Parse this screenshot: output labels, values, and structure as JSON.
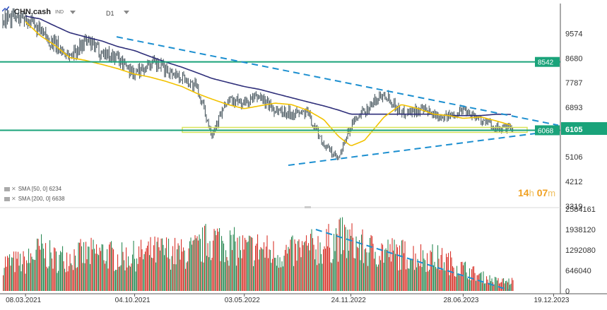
{
  "header": {
    "symbol": "CHN.cash",
    "badge": "IND",
    "timeframe": "D1"
  },
  "indicators": [
    {
      "label": "SMA",
      "params": "[50, 0]",
      "value": "6234",
      "color": "#f2c200"
    },
    {
      "label": "SMA",
      "params": "[200, 0]",
      "value": "6638",
      "color": "#2f2f7a"
    }
  ],
  "timer": {
    "hours": "14",
    "h_unit": "h",
    "minutes": "07",
    "m_unit": "m"
  },
  "price_axis_ticks": [
    "9574",
    "8680",
    "7787",
    "6893",
    "5106",
    "4212",
    "3319"
  ],
  "volume_axis_ticks": [
    "2584161",
    "1938120",
    "1292080",
    "646040",
    "0"
  ],
  "date_ticks": [
    "08.03.2021",
    "04.10.2021",
    "03.05.2022",
    "24.11.2022",
    "28.06.2023",
    "19.12.2023"
  ],
  "price_labels": {
    "resistance": "8542",
    "support": "6068",
    "current": "6105"
  },
  "colors": {
    "up": "#2e8b57",
    "down": "#d9342b",
    "level": "#1aa37a",
    "trend": "#1c8fd0",
    "sma50": "#f2c200",
    "sma200": "#2f2f7a",
    "zone": "#d8e35a"
  },
  "chart_data": {
    "type": "line",
    "title": "CHN.cash",
    "timeframe": "D1",
    "x": [
      "2021-03-08",
      "2021-04-05",
      "2021-05-03",
      "2021-06-01",
      "2021-07-01",
      "2021-08-02",
      "2021-09-01",
      "2021-10-04",
      "2021-11-01",
      "2021-12-01",
      "2022-01-03",
      "2022-02-01",
      "2022-03-01",
      "2022-04-01",
      "2022-05-03",
      "2022-06-01",
      "2022-07-01",
      "2022-08-01",
      "2022-09-01",
      "2022-10-03",
      "2022-10-31",
      "2022-11-24",
      "2022-12-20",
      "2023-01-27",
      "2023-03-01",
      "2023-04-03",
      "2023-05-02",
      "2023-06-01",
      "2023-06-28",
      "2023-08-01",
      "2023-09-01",
      "2023-10-02"
    ],
    "series": [
      {
        "name": "Price",
        "values": [
          10150,
          9600,
          9150,
          8750,
          9300,
          8900,
          8700,
          8100,
          8500,
          8300,
          8000,
          7600,
          5950,
          7150,
          7050,
          7300,
          6800,
          6700,
          6700,
          5550,
          5000,
          6250,
          6750,
          7450,
          6700,
          6800,
          6650,
          6550,
          6850,
          6450,
          6150,
          6105
        ]
      },
      {
        "name": "SMA 50",
        "values": [
          10000,
          9500,
          9150,
          8700,
          8600,
          8450,
          8300,
          8100,
          8000,
          7850,
          7650,
          7400,
          7200,
          7000,
          6850,
          6950,
          7050,
          7000,
          6800,
          6450,
          5850,
          5500,
          5700,
          6550,
          7000,
          6850,
          6650,
          6600,
          6500,
          6550,
          6400,
          6234
        ]
      },
      {
        "name": "SMA 200",
        "values": [
          10200,
          10100,
          9850,
          9600,
          9450,
          9300,
          9100,
          8950,
          8750,
          8550,
          8350,
          8150,
          7950,
          7800,
          7650,
          7550,
          7400,
          7250,
          7100,
          6950,
          6800,
          6650,
          6650,
          6650,
          6650,
          6650,
          6650,
          6600,
          6600,
          6600,
          6650,
          6638
        ]
      }
    ],
    "volume": [
      900000,
      1300000,
      1000000,
      1100000,
      1150000,
      1200000,
      1050000,
      1100000,
      1200000,
      1250000,
      1150000,
      1300000,
      1650000,
      1450000,
      1300000,
      1350000,
      1150000,
      1200000,
      1350000,
      1400000,
      1650000,
      1550000,
      1300000,
      1250000,
      1150000,
      1100000,
      1050000,
      900000,
      700000,
      450000,
      300000,
      300000
    ],
    "levels": [
      8542,
      6068
    ],
    "current_price": 6105,
    "yrange": [
      3319,
      10400
    ],
    "volume_range": [
      0,
      2584161
    ],
    "grid": false
  }
}
